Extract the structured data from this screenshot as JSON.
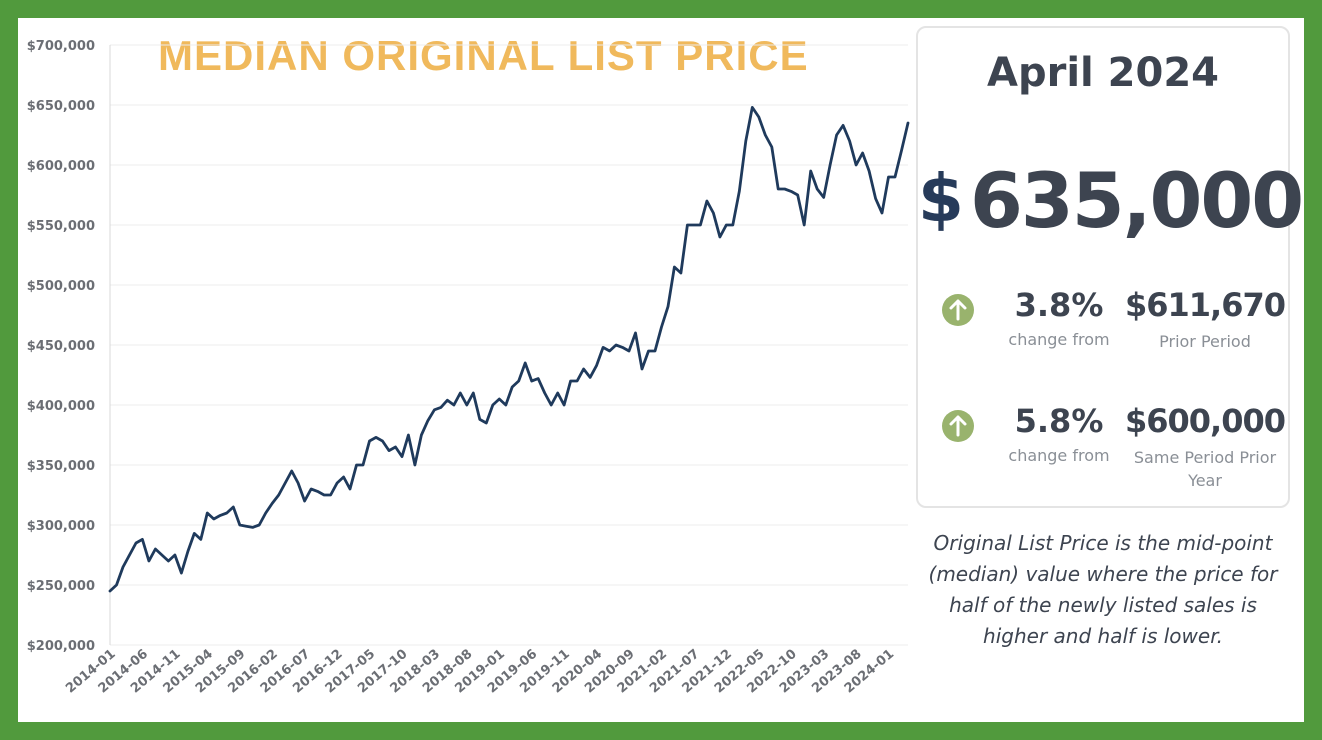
{
  "chart_data": {
    "type": "line",
    "title": "MEDIAN ORIGINAL LIST PRICE",
    "xlabel": "",
    "ylabel": "",
    "ylim": [
      200000,
      700000
    ],
    "yticks": [
      "$700,000",
      "$650,000",
      "$600,000",
      "$550,000",
      "$500,000",
      "$450,000",
      "$400,000",
      "$350,000",
      "$300,000",
      "$250,000",
      "$200,000"
    ],
    "xticks": [
      "2014-01",
      "2014-06",
      "2014-11",
      "2015-04",
      "2015-09",
      "2016-02",
      "2016-07",
      "2016-12",
      "2017-05",
      "2017-10",
      "2018-03",
      "2018-08",
      "2019-01",
      "2019-06",
      "2019-11",
      "2020-04",
      "2020-09",
      "2021-02",
      "2021-07",
      "2021-12",
      "2022-05",
      "2022-10",
      "2023-03",
      "2023-08",
      "2024-01"
    ],
    "x_start": "2014-01",
    "x_end": "2024-04",
    "grid": true,
    "color": "#1f3a5c",
    "series": [
      {
        "name": "",
        "values": [
          245000,
          250000,
          265000,
          275000,
          285000,
          288000,
          270000,
          280000,
          275000,
          270000,
          275000,
          260000,
          278000,
          293000,
          288000,
          310000,
          305000,
          308000,
          310000,
          315000,
          300000,
          299000,
          298000,
          300000,
          310000,
          318000,
          325000,
          335000,
          345000,
          335000,
          320000,
          330000,
          328000,
          325000,
          325000,
          335000,
          340000,
          330000,
          350000,
          350000,
          370000,
          373000,
          370000,
          362000,
          365000,
          357000,
          375000,
          350000,
          375000,
          387000,
          396000,
          398000,
          404000,
          400000,
          410000,
          400000,
          410000,
          388000,
          385000,
          400000,
          405000,
          400000,
          415000,
          420000,
          435000,
          420000,
          422000,
          410000,
          400000,
          410000,
          400000,
          420000,
          420000,
          430000,
          423000,
          433000,
          448000,
          445000,
          450000,
          448000,
          445000,
          460000,
          430000,
          445000,
          445000,
          465000,
          482000,
          515000,
          510000,
          550000,
          550000,
          550000,
          570000,
          560000,
          540000,
          550000,
          550000,
          578000,
          620000,
          648000,
          640000,
          625000,
          615000,
          580000,
          580000,
          578000,
          575000,
          550000,
          595000,
          580000,
          573000,
          600000,
          625000,
          633000,
          620000,
          600000,
          610000,
          595000,
          572000,
          560000,
          590000,
          590000,
          612000,
          635000
        ]
      }
    ]
  },
  "card": {
    "period": "April 2024",
    "currency_symbol": "$",
    "price": "635,000",
    "stats": [
      {
        "pct": "3.8%",
        "pct_label": "change from",
        "value": "$611,670",
        "value_label": "Prior Period",
        "direction": "up",
        "icon": "arrow-up-circle-icon"
      },
      {
        "pct": "5.8%",
        "pct_label": "change from",
        "value": "$600,000",
        "value_label": "Same Period Prior Year",
        "direction": "up",
        "icon": "arrow-up-circle-icon"
      }
    ]
  },
  "note": "Original List Price is the mid-point (median) value where the price for half of the newly listed sales is higher and half is lower.",
  "colors": {
    "border": "#519a3d",
    "title": "#f0b95c",
    "line": "#1f3a5c",
    "arrow": "#99b36d",
    "text": "#3d4450"
  }
}
